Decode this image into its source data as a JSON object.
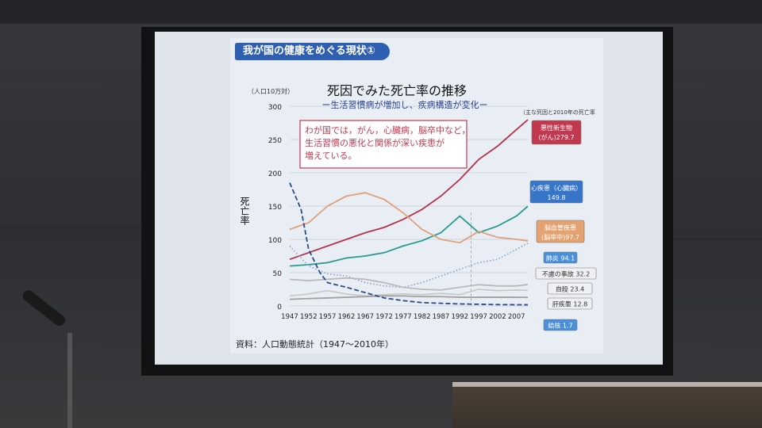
{
  "slide": {
    "banner": "我が国の健康をめぐる現状①",
    "source": "資料：人口動態統計（1947〜2010年）"
  },
  "chart_data": {
    "type": "line",
    "title": "死因でみた死亡率の推移",
    "subtitle": "ー生活習慣病が増加し、疾病構造が変化ー",
    "ylabel": "死亡率",
    "yunit": "（人口10万対）",
    "right_note": "（主な死因と2010年の死亡率",
    "ylim": [
      0,
      300
    ],
    "yticks": [
      0,
      50,
      100,
      150,
      200,
      250,
      300
    ],
    "xlim": [
      1947,
      2010
    ],
    "xticks": [
      "1947",
      "1952",
      "1957",
      "1962",
      "1967",
      "1972",
      "1977",
      "1982",
      "1987",
      "1992",
      "1997",
      "2002",
      "2007"
    ],
    "annotation": [
      "わが国では，がん，心臓病，脳卒中など，",
      "生活習慣の悪化と関係が深い疾患が",
      "増えている。"
    ],
    "series": [
      {
        "name": "悪性新生物（がん）",
        "end_label": "悪性新生物",
        "end_label2": "(がん)279.7",
        "color": "#b3334a",
        "style": "solid",
        "x": [
          1947,
          1952,
          1957,
          1962,
          1967,
          1972,
          1977,
          1982,
          1987,
          1992,
          1997,
          2002,
          2007,
          2010
        ],
        "y": [
          70,
          80,
          90,
          100,
          110,
          118,
          130,
          145,
          165,
          190,
          220,
          240,
          265,
          279.7
        ]
      },
      {
        "name": "心疾患（心臓病）",
        "end_label": "心疾患（心臓病）",
        "end_label2": "149.8",
        "color": "#2a9a8e",
        "style": "solid",
        "x": [
          1947,
          1952,
          1957,
          1962,
          1967,
          1972,
          1977,
          1982,
          1987,
          1992,
          1997,
          2002,
          2007,
          2010
        ],
        "y": [
          60,
          62,
          65,
          72,
          75,
          80,
          90,
          98,
          110,
          135,
          110,
          120,
          135,
          149.8
        ]
      },
      {
        "name": "脳血管疾患（脳卒中）",
        "end_label": "脳血管疾患",
        "end_label2": "(脳卒中)97.7",
        "color": "#e0a07a",
        "style": "solid",
        "x": [
          1947,
          1952,
          1957,
          1962,
          1967,
          1972,
          1977,
          1982,
          1987,
          1992,
          1997,
          2002,
          2007,
          2010
        ],
        "y": [
          115,
          125,
          150,
          165,
          170,
          160,
          140,
          115,
          100,
          95,
          112,
          103,
          100,
          97.7
        ]
      },
      {
        "name": "肺炎",
        "end_label": "肺炎",
        "end_label2": "94.1",
        "color": "#8aa9c9",
        "style": "dotted",
        "x": [
          1947,
          1952,
          1957,
          1962,
          1967,
          1972,
          1977,
          1982,
          1987,
          1992,
          1997,
          2002,
          2007,
          2010
        ],
        "y": [
          90,
          60,
          48,
          45,
          35,
          30,
          28,
          35,
          45,
          55,
          65,
          70,
          85,
          94.1
        ]
      },
      {
        "name": "不慮の事故",
        "end_label": "不慮の事故",
        "end_label2": "32.2",
        "color": "#b9b9b9",
        "style": "solid",
        "x": [
          1947,
          1952,
          1957,
          1962,
          1967,
          1972,
          1977,
          1982,
          1987,
          1992,
          1997,
          2002,
          2007,
          2010
        ],
        "y": [
          40,
          38,
          40,
          42,
          40,
          35,
          28,
          25,
          24,
          28,
          32,
          30,
          30,
          32.2
        ]
      },
      {
        "name": "自殺",
        "end_label": "自殺",
        "end_label2": "23.4",
        "color": "#c9c9c9",
        "style": "solid",
        "x": [
          1947,
          1952,
          1957,
          1962,
          1967,
          1972,
          1977,
          1982,
          1987,
          1992,
          1997,
          2002,
          2007,
          2010
        ],
        "y": [
          15,
          18,
          23,
          18,
          15,
          17,
          18,
          17,
          19,
          17,
          25,
          23,
          24,
          23.4
        ]
      },
      {
        "name": "肝疾患",
        "end_label": "肝疾患",
        "end_label2": "12.8",
        "color": "#a0a0a0",
        "style": "solid",
        "x": [
          1947,
          1952,
          1957,
          1962,
          1967,
          1972,
          1977,
          1982,
          1987,
          1992,
          1997,
          2002,
          2007,
          2010
        ],
        "y": [
          10,
          11,
          12,
          13,
          14,
          15,
          15,
          14,
          14,
          13,
          13,
          13,
          13,
          12.8
        ]
      },
      {
        "name": "結核",
        "end_label": "結核",
        "end_label2": "1.7",
        "color": "#2b4b8c",
        "style": "dashed",
        "x": [
          1947,
          1950,
          1952,
          1955,
          1957,
          1962,
          1967,
          1972,
          1977,
          1982,
          1987,
          1992,
          1997,
          2002,
          2007,
          2010
        ],
        "y": [
          185,
          145,
          85,
          50,
          35,
          28,
          20,
          12,
          8,
          5,
          4,
          3,
          2.5,
          2,
          1.8,
          1.7
        ]
      }
    ]
  }
}
